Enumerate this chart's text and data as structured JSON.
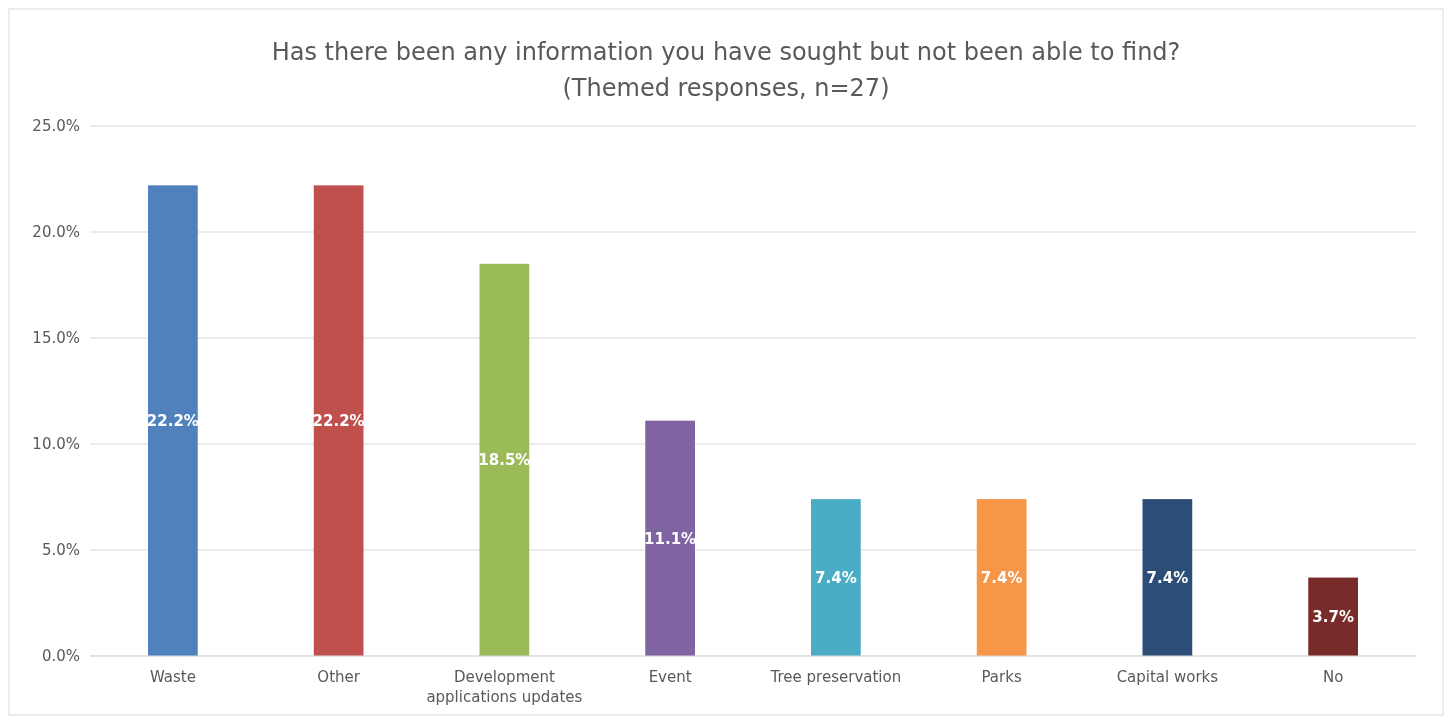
{
  "chart_data": {
    "type": "bar",
    "title": "Has there been any information you have sought but not been able to find?",
    "subtitle": "(Themed responses, n=27)",
    "categories": [
      "Waste",
      "Other",
      "Development applications updates",
      "Event",
      "Tree preservation",
      "Parks",
      "Capital works",
      "No"
    ],
    "values": [
      22.2,
      22.2,
      18.5,
      11.1,
      7.4,
      7.4,
      7.4,
      3.7
    ],
    "colors": [
      "#4f81bd",
      "#c0504d",
      "#9bbb59",
      "#8064a2",
      "#4bacc6",
      "#f79646",
      "#2c4d75",
      "#772c2a"
    ],
    "value_labels": [
      "22.2%",
      "22.2%",
      "18.5%",
      "11.1%",
      "7.4%",
      "7.4%",
      "7.4%",
      "3.7%"
    ],
    "ylim": [
      0,
      25
    ],
    "yticks": [
      {
        "value": 0,
        "label": "0.0%"
      },
      {
        "value": 5,
        "label": "5.0%"
      },
      {
        "value": 10,
        "label": "10.0%"
      },
      {
        "value": 15,
        "label": "15.0%"
      },
      {
        "value": 20,
        "label": "20.0%"
      },
      {
        "value": 25,
        "label": "25.0%"
      }
    ],
    "grid": "y"
  }
}
